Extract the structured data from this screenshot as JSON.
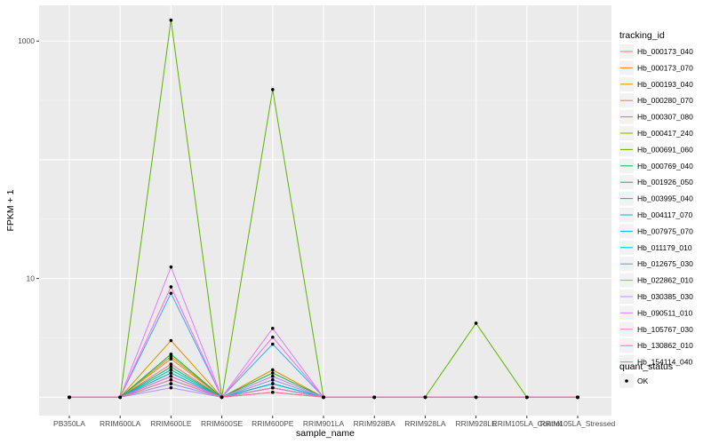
{
  "chart_data": {
    "type": "line",
    "xlabel": "sample_name",
    "ylabel": "FPKM + 1",
    "y_scale": "log10",
    "ylim": [
      0.7,
      2000
    ],
    "y_ticks": [
      {
        "value": 10,
        "label": "10"
      },
      {
        "value": 1000,
        "label": "1000"
      }
    ],
    "grid": true,
    "legend_position": "right",
    "categories": [
      "PB350LA",
      "RRIM600LA",
      "RRIM600LE",
      "RRIM600SE",
      "RRIM600PE",
      "RRIM901LA",
      "RRIM928BA",
      "RRIM928LA",
      "RRIM928LE",
      "RRIM105LA_Control",
      "RRIM105LA_Stressed"
    ],
    "series_legend_title": "tracking_id",
    "series": [
      {
        "name": "Hb_000173_040",
        "color": "#F8766D",
        "values": [
          1,
          1,
          1.9,
          1,
          1.3,
          1,
          1,
          1,
          1,
          1,
          1
        ]
      },
      {
        "name": "Hb_000173_070",
        "color": "#EC823C",
        "values": [
          1,
          1,
          2.1,
          1,
          1.4,
          1,
          1,
          1,
          1,
          1,
          1
        ]
      },
      {
        "name": "Hb_000193_040",
        "color": "#DC8E00",
        "values": [
          1,
          1,
          3.0,
          1,
          1.7,
          1,
          1,
          1,
          1,
          1,
          1
        ]
      },
      {
        "name": "Hb_000280_070",
        "color": "#C89A00",
        "values": [
          1,
          1,
          2.2,
          1,
          1.5,
          1,
          1,
          1,
          1,
          1,
          1
        ]
      },
      {
        "name": "Hb_000307_080",
        "color": "#AFA200",
        "values": [
          1,
          1,
          1.6,
          1,
          1.2,
          1,
          1,
          1,
          1,
          1,
          1
        ]
      },
      {
        "name": "Hb_000417_240",
        "color": "#90AB00",
        "values": [
          1,
          1,
          1.3,
          1,
          1.1,
          1,
          1,
          1,
          1,
          1,
          1
        ]
      },
      {
        "name": "Hb_000691_060",
        "color": "#5BB300",
        "values": [
          1,
          1,
          1500,
          1,
          390,
          1,
          1,
          1,
          4.2,
          1,
          1
        ]
      },
      {
        "name": "Hb_000769_040",
        "color": "#00BA38",
        "values": [
          1,
          1,
          2.3,
          1,
          1.6,
          1,
          1,
          1,
          1,
          1,
          1
        ]
      },
      {
        "name": "Hb_001926_050",
        "color": "#00BD6A",
        "values": [
          1,
          1,
          1.8,
          1,
          1.3,
          1,
          1,
          1,
          1,
          1,
          1
        ]
      },
      {
        "name": "Hb_003995_040",
        "color": "#00BF91",
        "values": [
          1,
          1,
          1.5,
          1,
          1.2,
          1,
          1,
          1,
          1,
          1,
          1
        ]
      },
      {
        "name": "Hb_004117_070",
        "color": "#00BFB2",
        "values": [
          1,
          1,
          1.7,
          1,
          1.3,
          1,
          1,
          1,
          1,
          1,
          1
        ]
      },
      {
        "name": "Hb_007975_070",
        "color": "#00BCD0",
        "values": [
          1,
          1,
          1.4,
          1,
          1.2,
          1,
          1,
          1,
          1,
          1,
          1
        ]
      },
      {
        "name": "Hb_011179_010",
        "color": "#00B5E8",
        "values": [
          1,
          1,
          1.6,
          1,
          1.3,
          1,
          1,
          1,
          1,
          1,
          1
        ]
      },
      {
        "name": "Hb_012675_030",
        "color": "#3AA9FF",
        "values": [
          1,
          1,
          7.5,
          1,
          2.8,
          1,
          1,
          1,
          1,
          1,
          1
        ]
      },
      {
        "name": "Hb_022862_010",
        "color": "#8F9CFF",
        "values": [
          1,
          1,
          1.3,
          1,
          1.4,
          1,
          1,
          1,
          1,
          1,
          1
        ]
      },
      {
        "name": "Hb_030385_030",
        "color": "#BA8DFF",
        "values": [
          1,
          1,
          1.2,
          1,
          1.5,
          1,
          1,
          1,
          1,
          1,
          1
        ]
      },
      {
        "name": "Hb_090511_010",
        "color": "#E07AFF",
        "values": [
          1,
          1,
          12.5,
          1,
          3.8,
          1,
          1,
          1,
          1,
          1,
          1
        ]
      },
      {
        "name": "Hb_105767_030",
        "color": "#F56EE5",
        "values": [
          1,
          1,
          8.5,
          1,
          3.2,
          1,
          1,
          1,
          1,
          1,
          1
        ]
      },
      {
        "name": "Hb_130862_010",
        "color": "#FF67C6",
        "values": [
          1,
          1,
          1.5,
          1,
          1.2,
          1,
          1,
          1,
          1,
          1,
          1
        ]
      },
      {
        "name": "Hb_154114_040",
        "color": "#FF6C9E",
        "values": [
          1,
          1,
          1.4,
          1,
          1.1,
          1,
          1,
          1,
          1,
          1,
          1
        ]
      }
    ],
    "point_color": "#000000",
    "point_legend_title": "quant_status",
    "point_legend_items": [
      "OK"
    ]
  }
}
